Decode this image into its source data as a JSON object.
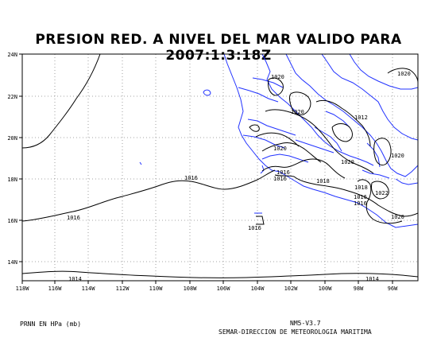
{
  "title": "PRESION RED. A NIVEL DEL MAR VALIDO PARA 2007:1:3:18Z",
  "footer": {
    "units": "PRNN EN HPa (mb)",
    "version": "NM5-V3.7",
    "organization": "SEMAR-DIRECCION DE METEOROLOGIA MARITIMA"
  },
  "axes": {
    "y_ticks": [
      "24N",
      "22N",
      "20N",
      "18N",
      "16N",
      "14N"
    ],
    "x_ticks": [
      "118W",
      "116W",
      "114W",
      "112W",
      "110W",
      "108W",
      "106W",
      "104W",
      "102W",
      "100W",
      "98W",
      "96W"
    ]
  },
  "isobar_labels": [
    "1020",
    "1020",
    "1020",
    "1012",
    "1020",
    "1020",
    "1020",
    "1016",
    "1016",
    "1018",
    "1016",
    "1018",
    "1016",
    "1016",
    "1022",
    "1020",
    "1016",
    "1016",
    "1016",
    "1014",
    "1014"
  ],
  "colors": {
    "coastline": "#2233ff",
    "isobar": "#000000",
    "grid": "#888888"
  }
}
